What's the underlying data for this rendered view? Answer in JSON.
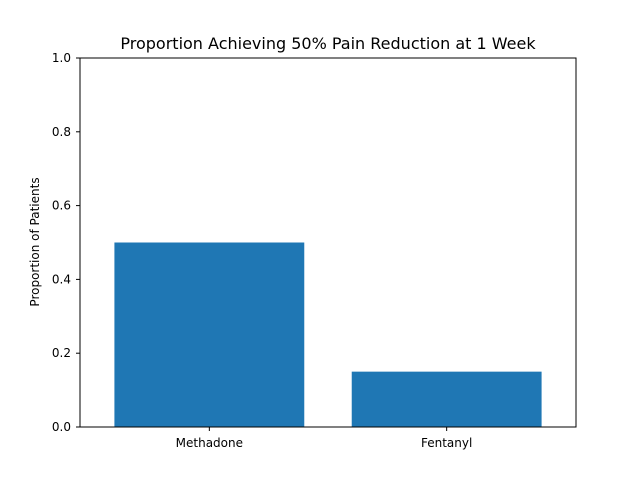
{
  "chart_data": {
    "type": "bar",
    "title": "Proportion Achieving 50% Pain Reduction at 1 Week",
    "xlabel": "",
    "ylabel": "Proportion of Patients",
    "categories": [
      "Methadone",
      "Fentanyl"
    ],
    "values": [
      0.5,
      0.15
    ],
    "ylim": [
      0,
      1.0
    ],
    "yticks": [
      "0.0",
      "0.2",
      "0.4",
      "0.6",
      "0.8",
      "1.0"
    ],
    "grid": false,
    "bar_color": "#1f77b4"
  }
}
